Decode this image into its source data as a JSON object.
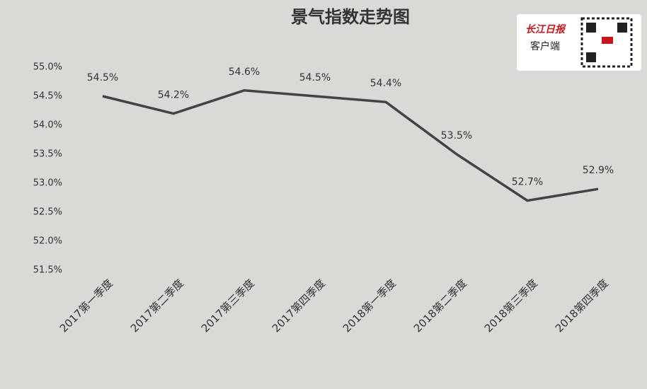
{
  "chart_data": {
    "type": "line",
    "title": "景气指数走势图",
    "categories": [
      "2017第一季度",
      "2017第二季度",
      "2017第三季度",
      "2017第四季度",
      "2018第一季度",
      "2018第二季度",
      "2018第三季度",
      "2018第四季度"
    ],
    "series": [
      {
        "name": "景气指数",
        "color": "#444444",
        "values": [
          54.5,
          54.2,
          54.6,
          54.5,
          54.4,
          53.5,
          52.7,
          52.9
        ],
        "value_labels": [
          "54.5%",
          "54.2%",
          "54.6%",
          "54.5%",
          "54.4%",
          "53.5%",
          "52.7%",
          "52.9%"
        ]
      }
    ],
    "ylim": [
      51.5,
      55.0
    ],
    "yticks": [
      {
        "value": 51.5,
        "label": "51.5%"
      },
      {
        "value": 52.0,
        "label": "52.0%"
      },
      {
        "value": 52.5,
        "label": "52.5%"
      },
      {
        "value": 53.0,
        "label": "53.0%"
      },
      {
        "value": 53.5,
        "label": "53.5%"
      },
      {
        "value": 54.0,
        "label": "54.0%"
      },
      {
        "value": 54.5,
        "label": "54.5%"
      },
      {
        "value": 55.0,
        "label": "55.0%"
      }
    ],
    "grid": false
  },
  "watermark": {
    "brand": "长江日报",
    "caption": "客户端"
  }
}
